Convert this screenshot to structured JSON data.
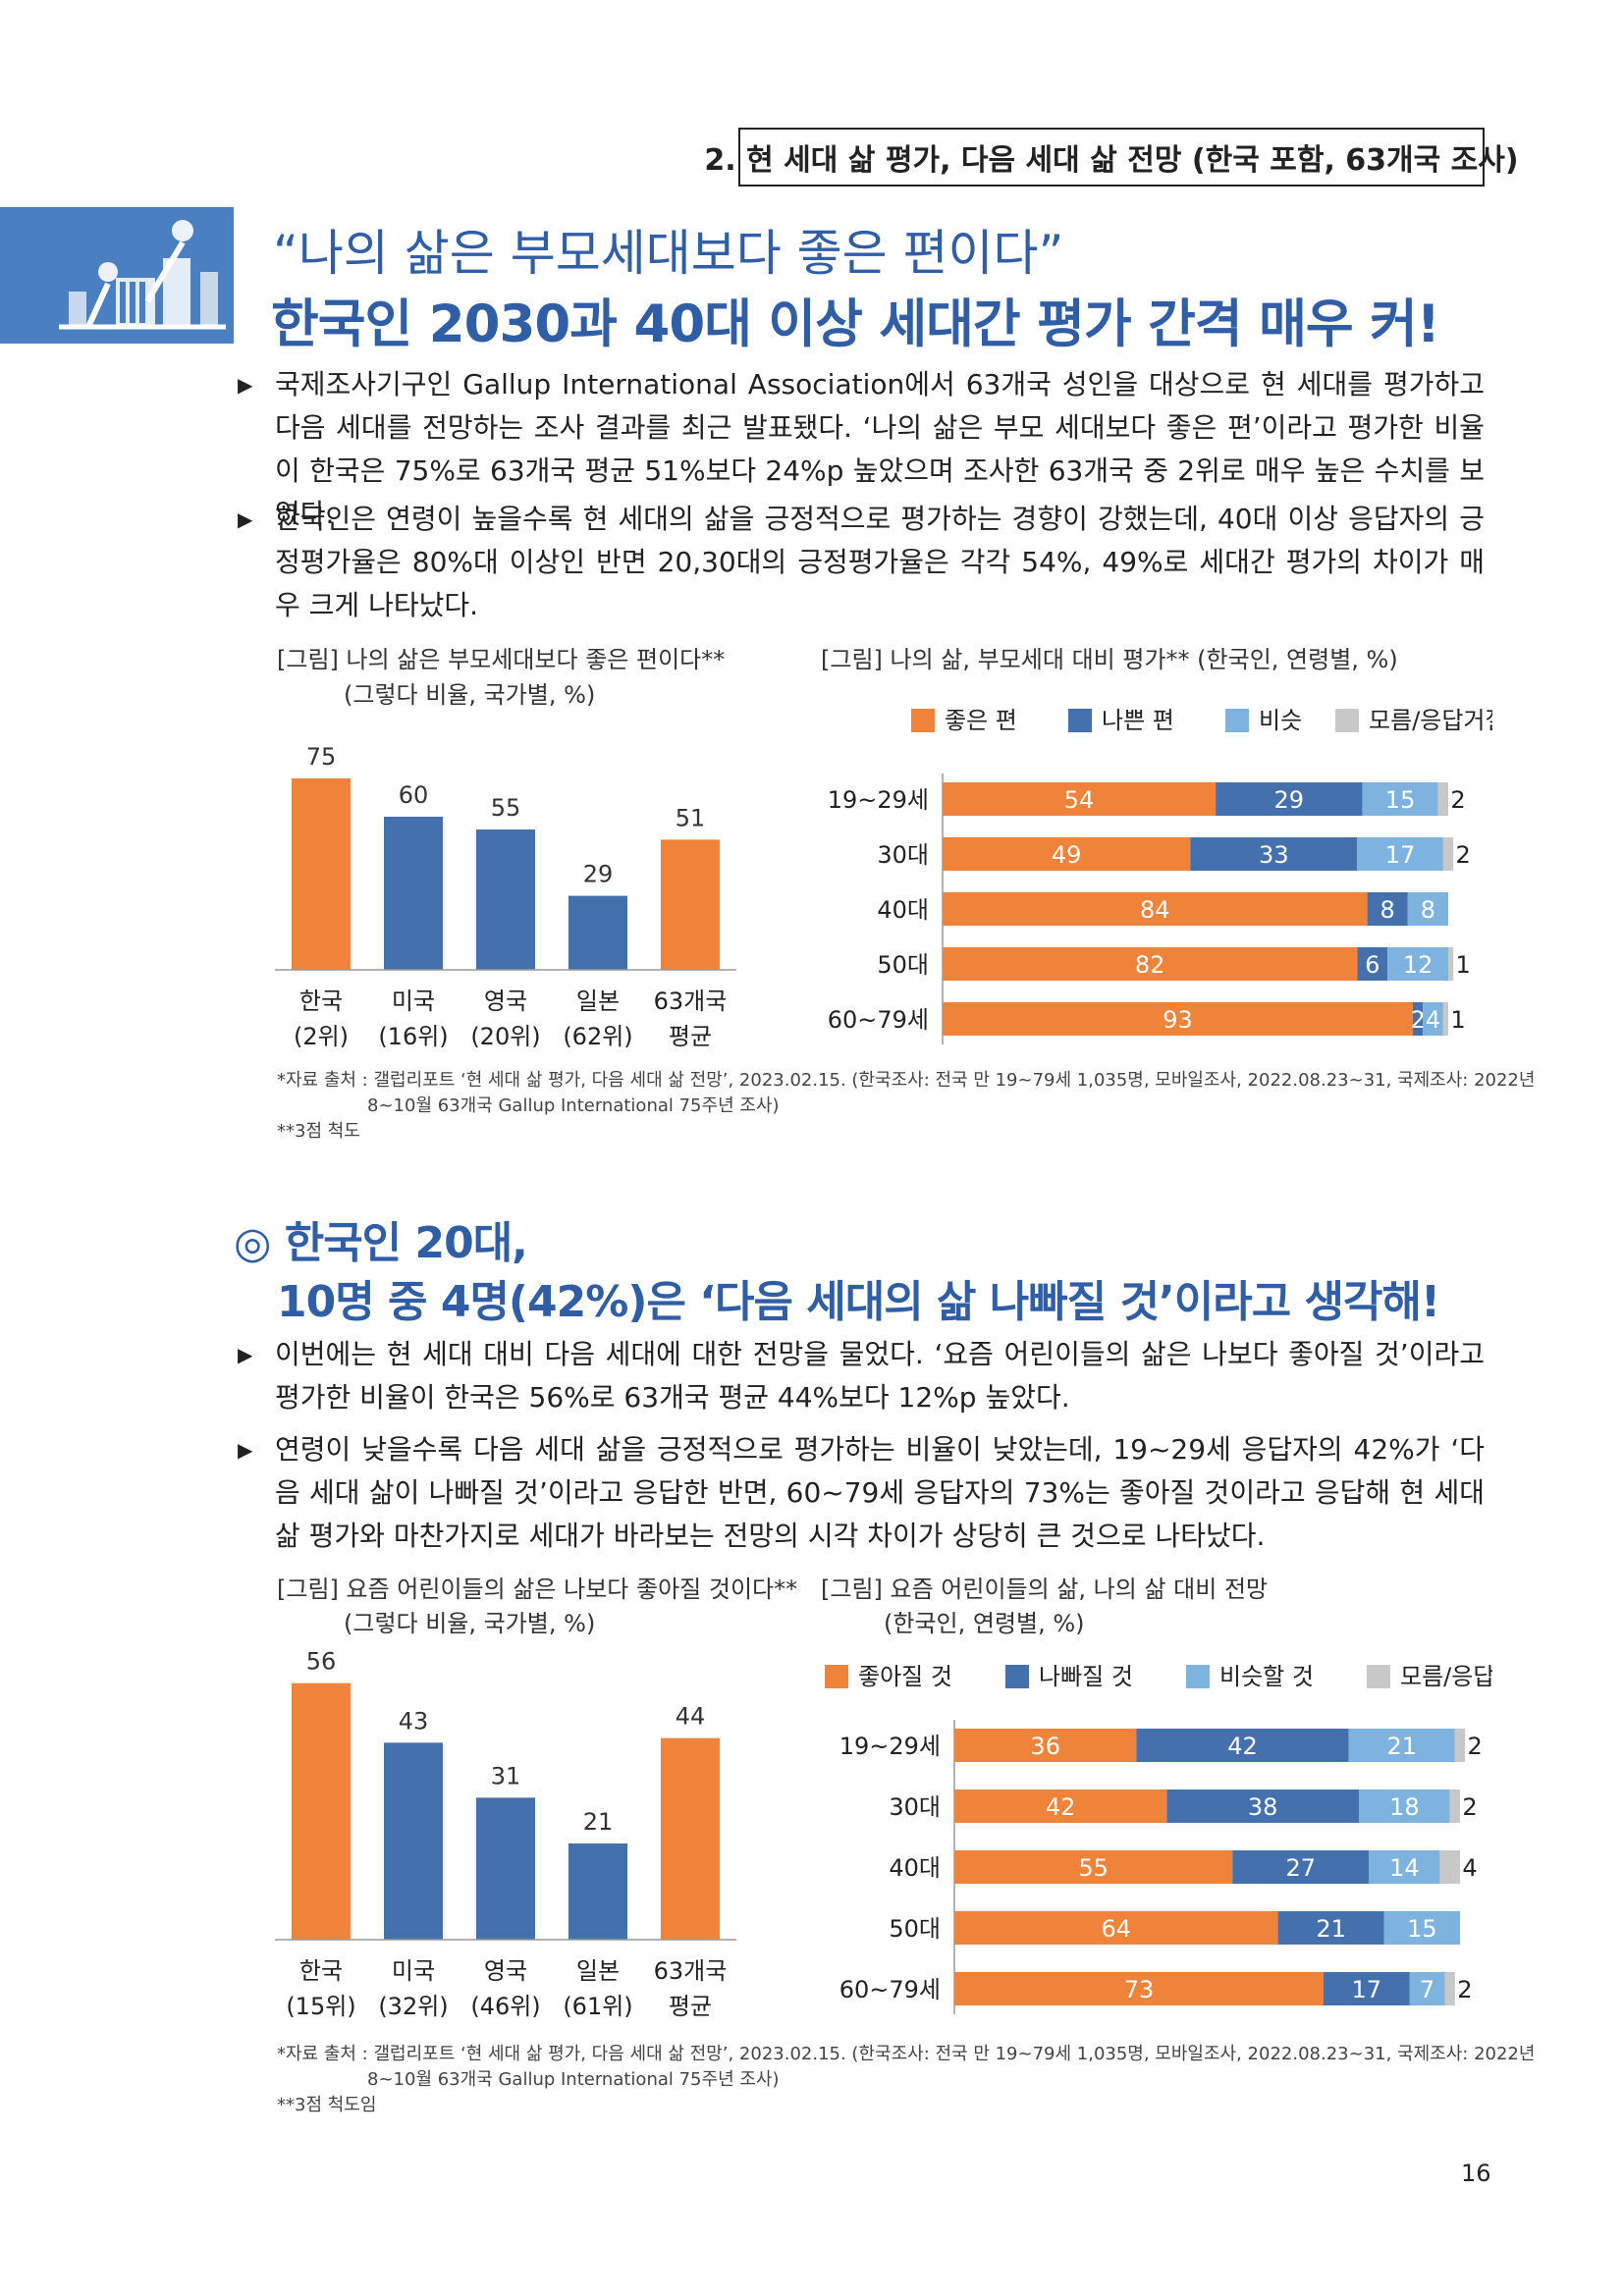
{
  "section_tag": "2. 현 세대 삶 평가, 다음 세대 삶 전망 (한국 포함, 63개국 조사)",
  "quote": "“나의 삶은 부모세대보다 좋은 편이다”",
  "headline": "한국인 2030과 40대 이상 세대간 평가 간격 매우 커!",
  "para1": "국제조사기구인 Gallup International Association에서 63개국 성인을 대상으로 현 세대를 평가하고 다음 세대를 전망하는 조사 결과를 최근 발표됐다. ‘나의 삶은 부모 세대보다 좋은 편’이라고 평가한 비율이 한국은 75%로 63개국 평균 51%보다 24%p 높았으며 조사한 63개국 중 2위로 매우 높은 수치를 보였다.",
  "para2": "한국인은 연령이 높을수록 현 세대의 삶을 긍정적으로 평가하는 경향이 강했는데, 40대 이상 응답자의 긍정평가율은 80%대 이상인 반면 20,30대의 긍정평가율은 각각 54%, 49%로 세대간 평가의 차이가 매우 크게 나타났다.",
  "fig1": {
    "caption1": "[그림] 나의 삶은 부모세대보다 좋은 편이다**",
    "caption2": "(그렇다 비율, 국가별, %)"
  },
  "fig2": {
    "caption1": "[그림] 나의 삶, 부모세대 대비 평가** (한국인, 연령별, %)"
  },
  "note1_line1": "*자료 출처 : 갤럽리포트 ‘현 세대 삶 평가, 다음 세대 삶 전망’, 2023.02.15. (한국조사: 전국 만 19~79세 1,035명, 모바일조사, 2022.08.23~31, 국제조사: 2022년",
  "note1_line2": "8~10월 63개국 Gallup International 75주년 조사)",
  "note1_line3": "**3점 척도",
  "h2_line1": "◎ 한국인 20대,",
  "h2_line2": "10명 중 4명(42%)은 ‘다음 세대의 삶 나빠질 것’이라고 생각해!",
  "para3": "이번에는 현 세대 대비 다음 세대에 대한 전망을 물었다. ‘요즘 어린이들의 삶은 나보다 좋아질 것’이라고 평가한 비율이 한국은 56%로 63개국 평균 44%보다 12%p 높았다.",
  "para4": "연령이 낮을수록 다음 세대 삶을 긍정적으로 평가하는 비율이 낮았는데, 19~29세 응답자의 42%가 ‘다음 세대 삶이 나빠질 것’이라고 응답한 반면, 60~79세 응답자의 73%는 좋아질 것이라고 응답해 현 세대 삶 평가와 마찬가지로 세대가 바라보는 전망의 시각 차이가 상당히 큰 것으로 나타났다.",
  "fig3": {
    "caption1": "[그림] 요즘 어린이들의 삶은 나보다 좋아질 것이다**",
    "caption2": "(그렇다 비율, 국가별, %)"
  },
  "fig4": {
    "caption1": "[그림] 요즘 어린이들의 삶, 나의 삶 대비 전망",
    "caption2": "(한국인, 연령별, %)"
  },
  "note2_line1": "*자료 출처 : 갤럽리포트 ‘현 세대 삶 평가, 다음 세대 삶 전망’, 2023.02.15. (한국조사: 전국 만 19~79세 1,035명, 모바일조사, 2022.08.23~31, 국제조사: 2022년",
  "note2_line2": "8~10월 63개국 Gallup International 75주년 조사)",
  "note2_line3": "**3점 척도임",
  "page_number": "16",
  "colors": {
    "orange": "#f0833a",
    "blue": "#4470ad",
    "light_blue": "#7fb3df",
    "gray": "#c8c8c8",
    "title_blue": "#2f5ea6"
  },
  "chart_data": [
    {
      "type": "bar",
      "categories": [
        "한국 (2위)",
        "미국 (16위)",
        "영국 (20위)",
        "일본 (62위)",
        "63개국 평균"
      ],
      "category_lines": [
        [
          "한국",
          "(2위)"
        ],
        [
          "미국",
          "(16위)"
        ],
        [
          "영국",
          "(20위)"
        ],
        [
          "일본",
          "(62위)"
        ],
        [
          "63개국",
          "평균"
        ]
      ],
      "values": [
        75,
        60,
        55,
        29,
        51
      ],
      "bar_colors": [
        "#f0833a",
        "#4470ad",
        "#4470ad",
        "#4470ad",
        "#f0833a"
      ],
      "ylim": [
        0,
        80
      ]
    },
    {
      "type": "bar",
      "orientation": "horizontal-stacked",
      "legend": [
        "좋은 편",
        "나쁜 편",
        "비슷",
        "모름/응답거절"
      ],
      "categories": [
        "19~29세",
        "30대",
        "40대",
        "50대",
        "60~79세"
      ],
      "series": [
        {
          "name": "좋은 편",
          "values": [
            54,
            49,
            84,
            82,
            93
          ]
        },
        {
          "name": "나쁜 편",
          "values": [
            29,
            33,
            8,
            6,
            2
          ]
        },
        {
          "name": "비슷",
          "values": [
            15,
            17,
            8,
            12,
            4
          ]
        },
        {
          "name": "모름/응답거절",
          "values": [
            2,
            2,
            0,
            1,
            1
          ]
        }
      ],
      "xlim": [
        0,
        100
      ]
    },
    {
      "type": "bar",
      "categories": [
        "한국 (15위)",
        "미국 (32위)",
        "영국 (46위)",
        "일본 (61위)",
        "63개국 평균"
      ],
      "category_lines": [
        [
          "한국",
          "(15위)"
        ],
        [
          "미국",
          "(32위)"
        ],
        [
          "영국",
          "(46위)"
        ],
        [
          "일본",
          "(61위)"
        ],
        [
          "63개국",
          "평균"
        ]
      ],
      "values": [
        56,
        43,
        31,
        21,
        44
      ],
      "bar_colors": [
        "#f0833a",
        "#4470ad",
        "#4470ad",
        "#4470ad",
        "#f0833a"
      ],
      "ylim": [
        0,
        60
      ]
    },
    {
      "type": "bar",
      "orientation": "horizontal-stacked",
      "legend": [
        "좋아질 것",
        "나빠질 것",
        "비슷할 것",
        "모름/응답거절"
      ],
      "categories": [
        "19~29세",
        "30대",
        "40대",
        "50대",
        "60~79세"
      ],
      "series": [
        {
          "name": "좋아질 것",
          "values": [
            36,
            42,
            55,
            64,
            73
          ]
        },
        {
          "name": "나빠질 것",
          "values": [
            42,
            38,
            27,
            21,
            17
          ]
        },
        {
          "name": "비슷할 것",
          "values": [
            21,
            18,
            14,
            15,
            7
          ]
        },
        {
          "name": "모름/응답거절",
          "values": [
            2,
            2,
            4,
            0,
            2
          ]
        }
      ],
      "xlim": [
        0,
        100
      ]
    }
  ]
}
